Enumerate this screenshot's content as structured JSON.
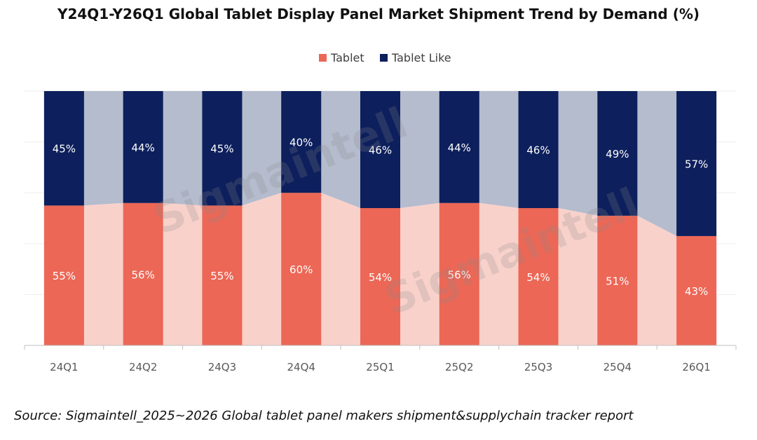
{
  "chart_data": {
    "type": "bar",
    "stacked": true,
    "title": "Y24Q1-Y26Q1 Global Tablet Display Panel Market Shipment Trend by Demand (%)",
    "categories": [
      "24Q1",
      "24Q2",
      "24Q3",
      "24Q4",
      "25Q1",
      "25Q2",
      "25Q3",
      "25Q4",
      "26Q1"
    ],
    "series": [
      {
        "name": "Tablet",
        "color": "#EC6756",
        "band_color": "#F9D1CB",
        "values": [
          55,
          56,
          55,
          60,
          54,
          56,
          54,
          51,
          43
        ],
        "labels": [
          "55%",
          "56%",
          "55%",
          "60%",
          "54%",
          "56%",
          "54%",
          "51%",
          "43%"
        ]
      },
      {
        "name": "Tablet Like",
        "color": "#0D1F5C",
        "band_color": "#B4BCCE",
        "values": [
          45,
          44,
          45,
          40,
          46,
          44,
          46,
          49,
          57
        ],
        "labels": [
          "45%",
          "44%",
          "45%",
          "40%",
          "46%",
          "44%",
          "46%",
          "49%",
          "57%"
        ]
      }
    ],
    "ylim": [
      0,
      100
    ],
    "grid": true,
    "legend": "top-center",
    "watermark": "Sigmaintell"
  },
  "source": "Source: Sigmaintell_2025~2026 Global tablet panel makers shipment&supplychain tracker report"
}
